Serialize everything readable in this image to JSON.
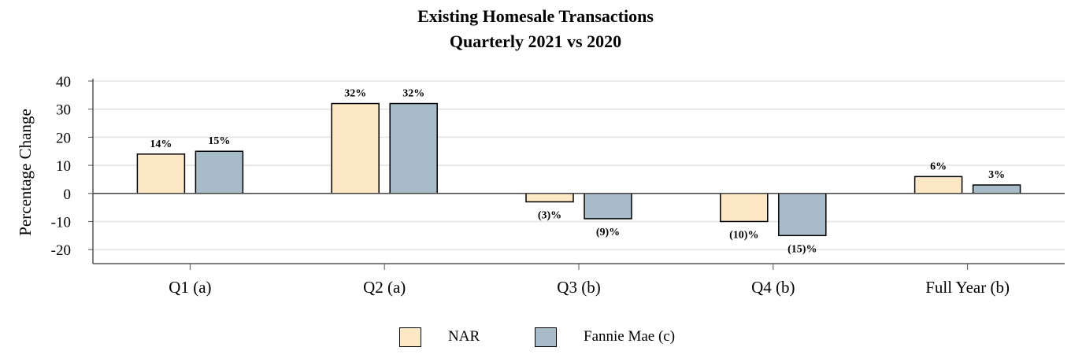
{
  "chart_data": {
    "type": "bar",
    "title": "Existing Homesale Transactions",
    "subtitle": "Quarterly 2021 vs 2020",
    "xlabel": "",
    "ylabel": "Percentage Change",
    "categories": [
      "Q1 (a)",
      "Q2 (a)",
      "Q3 (b)",
      "Q4 (b)",
      "Full Year (b)"
    ],
    "series": [
      {
        "name": "NAR",
        "values": [
          14,
          32,
          -3,
          -10,
          6
        ],
        "labels": [
          "14%",
          "32%",
          "(3)%",
          "(10)%",
          "6%"
        ],
        "color": "#fde8c5"
      },
      {
        "name": "Fannie Mae (c)",
        "values": [
          15,
          32,
          -9,
          -15,
          3
        ],
        "labels": [
          "15%",
          "32%",
          "(9)%",
          "(15)%",
          "3%"
        ],
        "color": "#a7bcc8"
      }
    ],
    "ylim": [
      -25,
      40
    ],
    "yticks": [
      40,
      30,
      20,
      10,
      0,
      -10,
      -20
    ],
    "grid": true,
    "legend_position": "bottom-center"
  }
}
